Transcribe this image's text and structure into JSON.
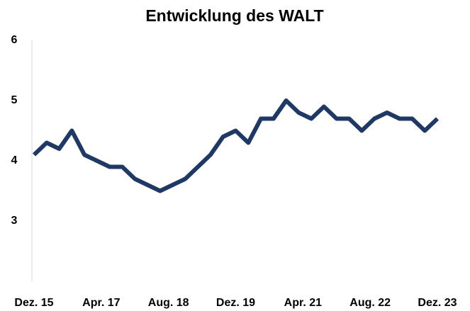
{
  "chart_data": {
    "type": "line",
    "title": "Entwicklung des WALT",
    "x": [
      0,
      3,
      6,
      9,
      12,
      15,
      18,
      21,
      24,
      27,
      30,
      33,
      36,
      39,
      42,
      45,
      48,
      51,
      54,
      57,
      60,
      63,
      66,
      69,
      72,
      75,
      78,
      81,
      84,
      87,
      90,
      93,
      96
    ],
    "series": [
      {
        "name": "WALT",
        "color": "#1f3864",
        "values": [
          4.1,
          4.3,
          4.2,
          4.5,
          4.1,
          4.0,
          3.9,
          3.9,
          3.7,
          3.6,
          3.5,
          3.6,
          3.7,
          3.9,
          4.1,
          4.4,
          4.5,
          4.3,
          4.7,
          4.7,
          5.0,
          4.8,
          4.7,
          4.9,
          4.7,
          4.7,
          4.5,
          4.7,
          4.8,
          4.7,
          4.7,
          4.5,
          4.7
        ]
      }
    ],
    "xlim": [
      0,
      96
    ],
    "xticks": [
      {
        "value": 0,
        "label": "Dez. 15"
      },
      {
        "value": 16,
        "label": "Apr. 17"
      },
      {
        "value": 32,
        "label": "Aug. 18"
      },
      {
        "value": 48,
        "label": "Dez. 19"
      },
      {
        "value": 64,
        "label": "Apr. 21"
      },
      {
        "value": 80,
        "label": "Aug. 22"
      },
      {
        "value": 96,
        "label": "Dez. 23"
      }
    ],
    "ylim": [
      2,
      6
    ],
    "yticks": [
      3,
      4,
      5,
      6
    ],
    "grid": false
  }
}
